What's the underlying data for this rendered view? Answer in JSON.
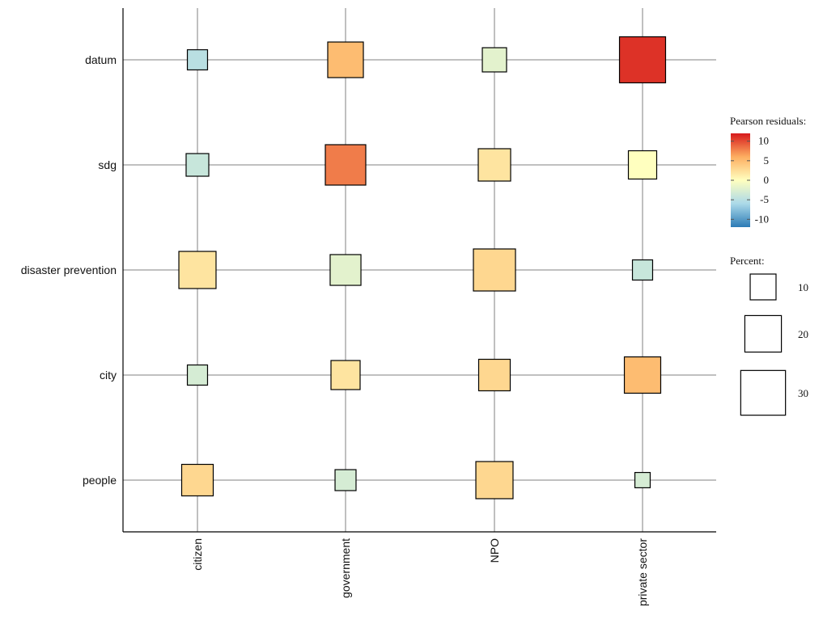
{
  "chart_data": {
    "type": "heatmap",
    "subtype": "balloon-plot-squares",
    "title": "",
    "xlabel": "",
    "ylabel": "",
    "x_categories": [
      "citizen",
      "government",
      "NPO",
      "private sector"
    ],
    "y_categories": [
      "datum",
      "sdg",
      "disaster prevention",
      "city",
      "people"
    ],
    "percent": [
      [
        6.1,
        19.0,
        8.8,
        31.8
      ],
      [
        7.7,
        24.5,
        15.7,
        12.0
      ],
      [
        20.7,
        14.2,
        26.5,
        6.1
      ],
      [
        6.1,
        12.7,
        14.9,
        19.8
      ],
      [
        14.9,
        6.6,
        20.7,
        3.5
      ]
    ],
    "pearson_residuals": [
      [
        -5,
        5,
        -2,
        11
      ],
      [
        -4,
        8,
        2,
        0
      ],
      [
        2,
        -2,
        3,
        -4
      ],
      [
        -3,
        2,
        3,
        5
      ],
      [
        3,
        -3,
        3,
        -3
      ]
    ],
    "grid": true,
    "legend": {
      "position": "right",
      "color": {
        "title": "Pearson residuals:",
        "ticks": [
          10,
          5,
          0,
          -5,
          -10
        ],
        "range": [
          -12,
          12
        ],
        "palette": [
          "#2c7bb6",
          "#abd9e9",
          "#ffffbf",
          "#fdae61",
          "#d7191c"
        ]
      },
      "size": {
        "title": "Percent:",
        "values": [
          10,
          20,
          30
        ]
      }
    }
  }
}
